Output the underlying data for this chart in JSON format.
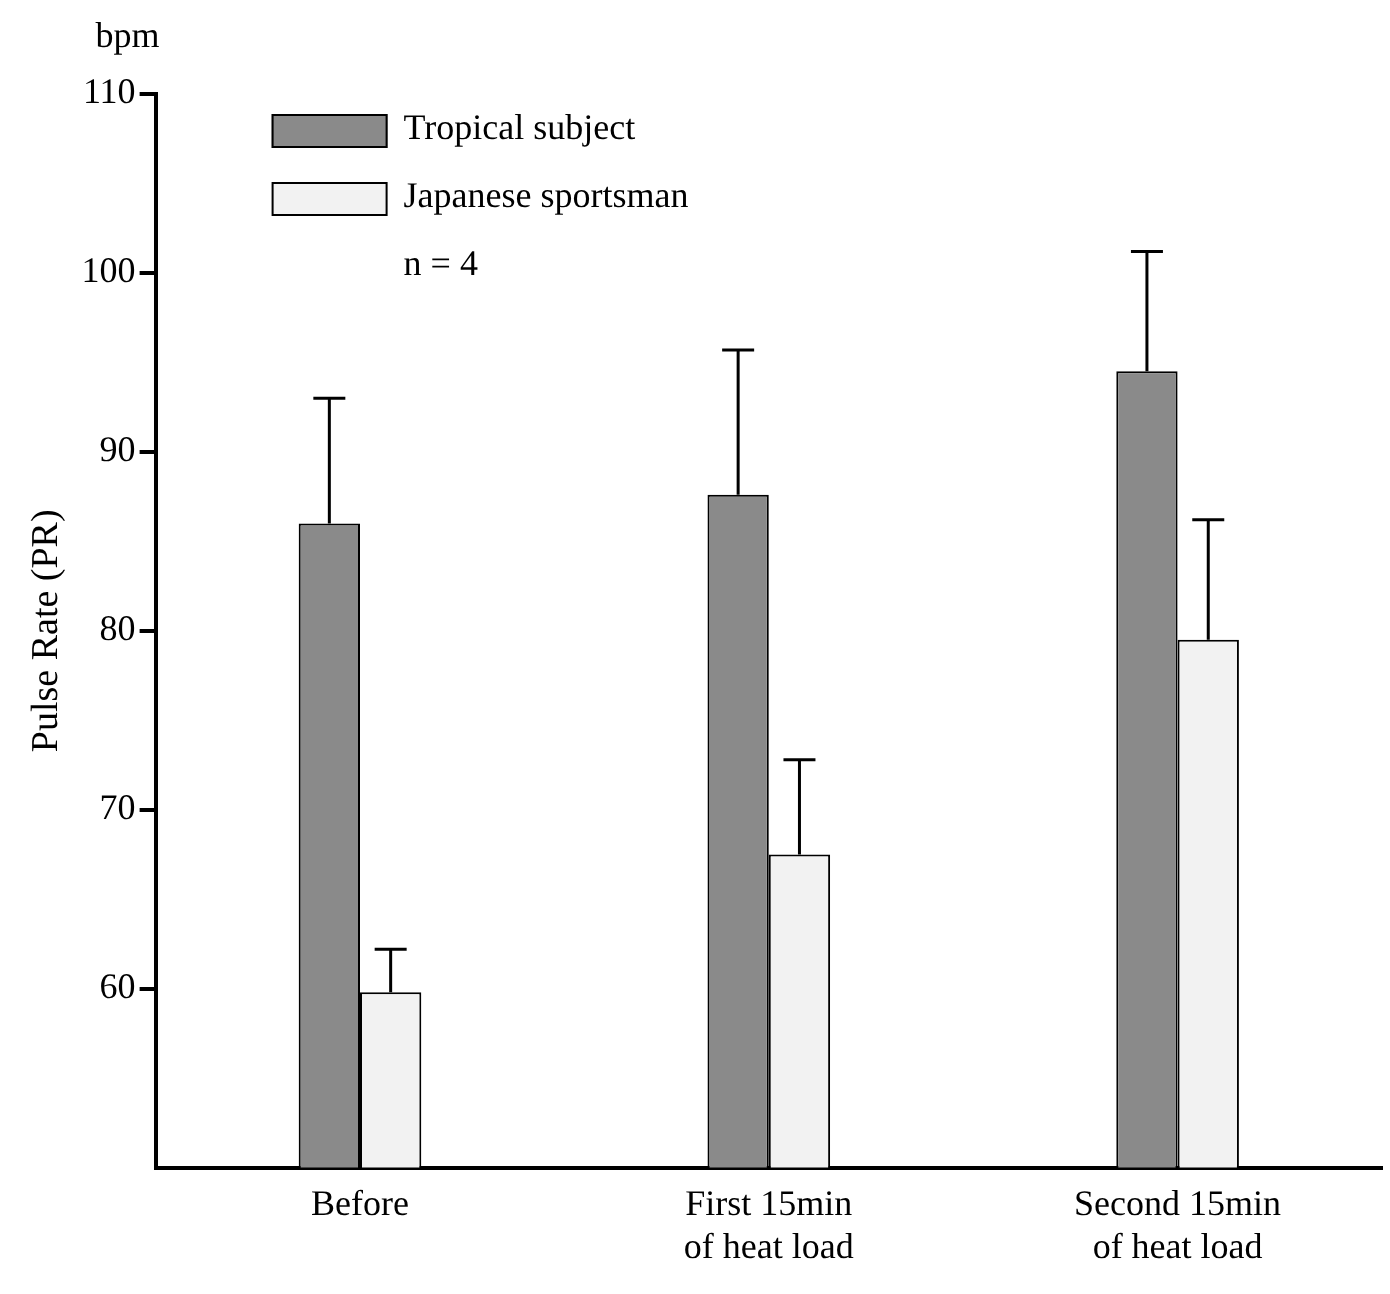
{
  "chart_data": {
    "type": "bar",
    "ylabel": "Pulse Rate (PR)",
    "annotations": [
      "bpm",
      "n = 4"
    ],
    "categories": [
      "Before",
      "First 15min\nof heat load",
      "Second 15min\nof heat load"
    ],
    "series": [
      {
        "name": "Tropical subject",
        "color": "#8a8a8a",
        "values": [
          86,
          87.6,
          94.5
        ],
        "errors": [
          [
            86,
            93
          ],
          [
            87.6,
            95.7
          ],
          [
            94.5,
            101.2
          ]
        ]
      },
      {
        "name": "Japanese sportsman",
        "color": "#f2f2f2",
        "values": [
          59.8,
          67.5,
          79.5
        ],
        "errors": [
          [
            59.8,
            62.2
          ],
          [
            67.5,
            72.8
          ],
          [
            79.5,
            86.2
          ]
        ]
      }
    ],
    "ylim": [
      50,
      110
    ],
    "yticks": [
      60,
      70,
      80,
      90,
      100,
      110
    ],
    "grid": false,
    "legend": "top left"
  }
}
